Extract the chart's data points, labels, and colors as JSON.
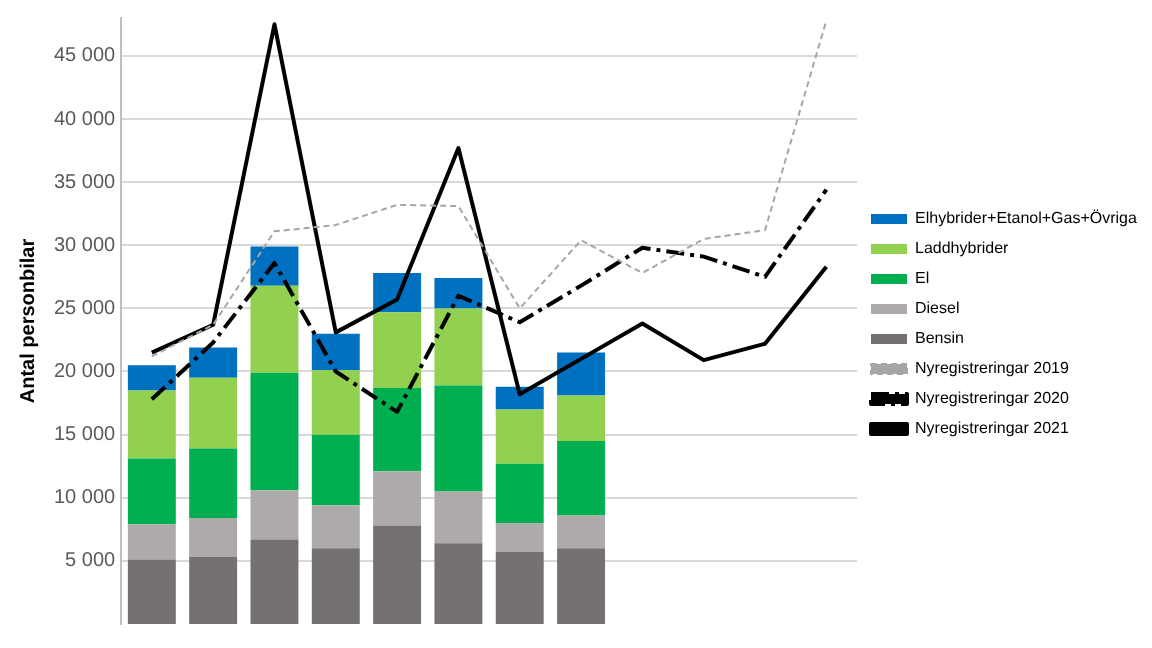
{
  "chart_data": {
    "type": "bar",
    "stacked": true,
    "ylabel": "Antal personbilar",
    "categories": [
      null,
      null,
      null,
      null,
      null,
      null,
      null,
      null,
      null,
      null,
      null,
      null
    ],
    "series": [
      {
        "name": "Bensin",
        "color": "#757171",
        "values": [
          5100,
          5300,
          6700,
          6000,
          7800,
          6400,
          5700,
          6000,
          null,
          null,
          null,
          null
        ]
      },
      {
        "name": "Diesel",
        "color": "#aeaaaa",
        "values": [
          2800,
          3100,
          3900,
          3400,
          4300,
          4100,
          2300,
          2600,
          null,
          null,
          null,
          null
        ]
      },
      {
        "name": "El",
        "color": "#00b050",
        "values": [
          5200,
          5500,
          9300,
          5600,
          6600,
          8400,
          4700,
          5900,
          null,
          null,
          null,
          null
        ]
      },
      {
        "name": "Laddhybrider",
        "color": "#92d050",
        "values": [
          5400,
          5600,
          6900,
          5100,
          6000,
          6100,
          4300,
          3600,
          null,
          null,
          null,
          null
        ]
      },
      {
        "name": "Elhybrider+Etanol+Gas+Övriga",
        "color": "#0070c0",
        "values": [
          2000,
          2400,
          3100,
          2900,
          3100,
          2400,
          1800,
          3400,
          null,
          null,
          null,
          null
        ]
      },
      {
        "name": "Nyregistreringar 2019",
        "type": "line",
        "line_style": "dotted",
        "color": "#a6a6a6",
        "values": [
          21200,
          23700,
          31100,
          31600,
          33200,
          33100,
          25000,
          30400,
          27800,
          30500,
          31200,
          47800
        ]
      },
      {
        "name": "Nyregistreringar 2020",
        "type": "line",
        "line_style": "dashed",
        "color": "#000000",
        "values": [
          17800,
          22300,
          28600,
          20000,
          16800,
          26000,
          23900,
          26800,
          29800,
          29100,
          27500,
          34400
        ]
      },
      {
        "name": "Nyregistreringar 2021",
        "type": "line",
        "line_style": "solid",
        "color": "#000000",
        "values": [
          21500,
          23700,
          47500,
          23100,
          25700,
          37700,
          18200,
          21000,
          23800,
          20900,
          22200,
          28300
        ]
      }
    ],
    "ylim": [
      0,
      48000
    ],
    "yticks": [
      {
        "value": 5000,
        "label": "5 000"
      },
      {
        "value": 10000,
        "label": "10 000"
      },
      {
        "value": 15000,
        "label": "15 000"
      },
      {
        "value": 20000,
        "label": "20 000"
      },
      {
        "value": 25000,
        "label": "25 000"
      },
      {
        "value": 30000,
        "label": "30 000"
      },
      {
        "value": 35000,
        "label": "35 000"
      },
      {
        "value": 40000,
        "label": "40 000"
      },
      {
        "value": 45000,
        "label": "45 000"
      }
    ],
    "grid": "y",
    "legend": "right",
    "tick_labels": "y",
    "marker": "none"
  }
}
